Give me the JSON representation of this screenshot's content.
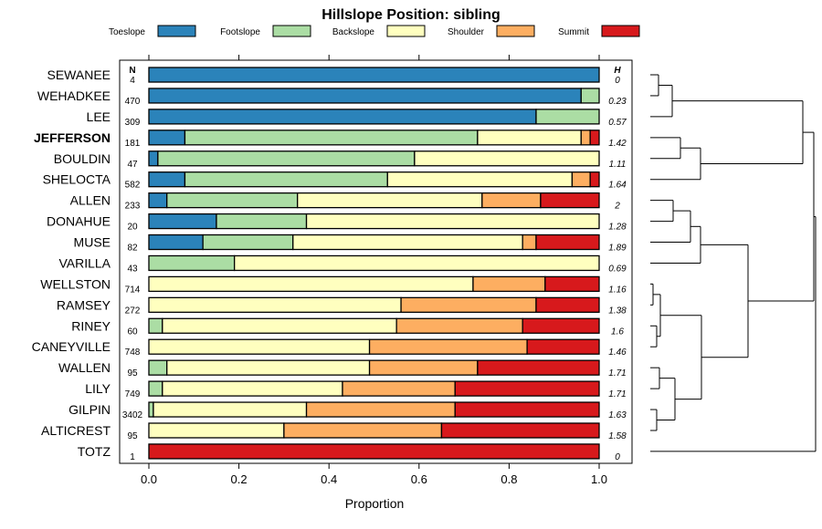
{
  "chart_data": {
    "type": "bar",
    "subtype": "stacked-horizontal-proportion",
    "title": "Hillslope Position: sibling",
    "xlabel": "Proportion",
    "xlim": [
      0,
      1
    ],
    "x_ticks": [
      "0.0",
      "0.2",
      "0.4",
      "0.6",
      "0.8",
      "1.0"
    ],
    "n_header": "N",
    "h_header": "H",
    "highlight": "JEFFERSON",
    "series": [
      {
        "name": "Toeslope",
        "color": "#2B83BA"
      },
      {
        "name": "Footslope",
        "color": "#ABDDA4"
      },
      {
        "name": "Backslope",
        "color": "#FFFFBF"
      },
      {
        "name": "Shoulder",
        "color": "#FDAE61"
      },
      {
        "name": "Summit",
        "color": "#D7191C"
      }
    ],
    "rows": [
      {
        "name": "SEWANEE",
        "n": "4",
        "h": "0",
        "values": [
          1.0,
          0.0,
          0.0,
          0.0,
          0.0
        ]
      },
      {
        "name": "WEHADKEE",
        "n": "470",
        "h": "0.23",
        "values": [
          0.96,
          0.04,
          0.0,
          0.0,
          0.0
        ]
      },
      {
        "name": "LEE",
        "n": "309",
        "h": "0.57",
        "values": [
          0.86,
          0.14,
          0.0,
          0.0,
          0.0
        ]
      },
      {
        "name": "JEFFERSON",
        "n": "181",
        "h": "1.42",
        "values": [
          0.08,
          0.65,
          0.23,
          0.02,
          0.02
        ]
      },
      {
        "name": "BOULDIN",
        "n": "47",
        "h": "1.11",
        "values": [
          0.02,
          0.57,
          0.41,
          0.0,
          0.0
        ]
      },
      {
        "name": "SHELOCTA",
        "n": "582",
        "h": "1.64",
        "values": [
          0.08,
          0.45,
          0.41,
          0.04,
          0.02
        ]
      },
      {
        "name": "ALLEN",
        "n": "233",
        "h": "2",
        "values": [
          0.04,
          0.29,
          0.41,
          0.13,
          0.13
        ]
      },
      {
        "name": "DONAHUE",
        "n": "20",
        "h": "1.28",
        "values": [
          0.15,
          0.2,
          0.65,
          0.0,
          0.0
        ]
      },
      {
        "name": "MUSE",
        "n": "82",
        "h": "1.89",
        "values": [
          0.12,
          0.2,
          0.51,
          0.03,
          0.14
        ]
      },
      {
        "name": "VARILLA",
        "n": "43",
        "h": "0.69",
        "values": [
          0.0,
          0.19,
          0.81,
          0.0,
          0.0
        ]
      },
      {
        "name": "WELLSTON",
        "n": "714",
        "h": "1.16",
        "values": [
          0.0,
          0.0,
          0.72,
          0.16,
          0.12
        ]
      },
      {
        "name": "RAMSEY",
        "n": "272",
        "h": "1.38",
        "values": [
          0.0,
          0.0,
          0.56,
          0.3,
          0.14
        ]
      },
      {
        "name": "RINEY",
        "n": "60",
        "h": "1.6",
        "values": [
          0.0,
          0.03,
          0.52,
          0.28,
          0.17
        ]
      },
      {
        "name": "CANEYVILLE",
        "n": "748",
        "h": "1.46",
        "values": [
          0.0,
          0.0,
          0.49,
          0.35,
          0.16
        ]
      },
      {
        "name": "WALLEN",
        "n": "95",
        "h": "1.71",
        "values": [
          0.0,
          0.04,
          0.45,
          0.24,
          0.27
        ]
      },
      {
        "name": "LILY",
        "n": "749",
        "h": "1.71",
        "values": [
          0.0,
          0.03,
          0.4,
          0.25,
          0.32
        ]
      },
      {
        "name": "GILPIN",
        "n": "3402",
        "h": "1.63",
        "values": [
          0.0,
          0.01,
          0.34,
          0.33,
          0.32
        ]
      },
      {
        "name": "ALTICREST",
        "n": "95",
        "h": "1.58",
        "values": [
          0.0,
          0.0,
          0.3,
          0.35,
          0.35
        ]
      },
      {
        "name": "TOTZ",
        "n": "1",
        "h": "0",
        "values": [
          0.0,
          0.0,
          0.0,
          0.0,
          1.0
        ]
      }
    ]
  }
}
